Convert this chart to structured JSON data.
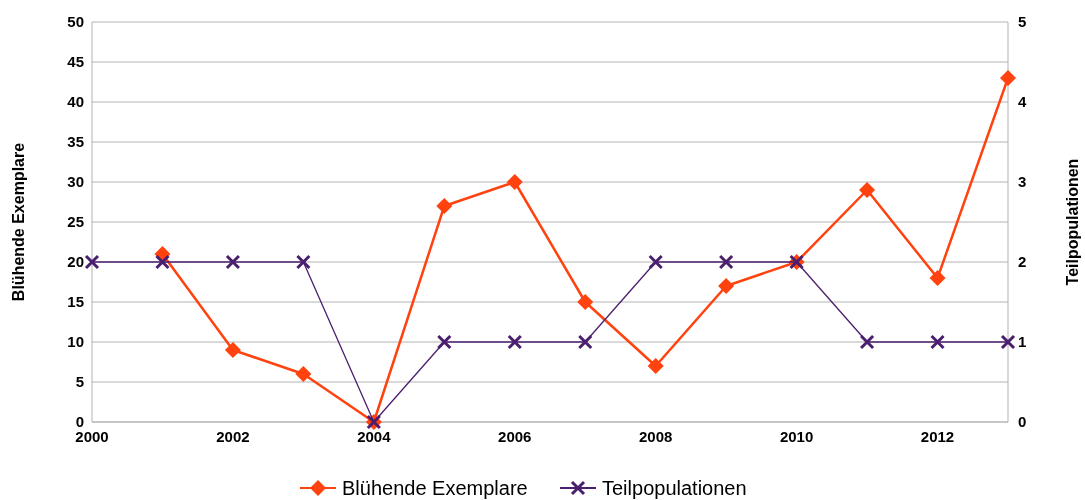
{
  "chart_data": {
    "type": "line",
    "x": [
      2000,
      2001,
      2002,
      2003,
      2004,
      2005,
      2006,
      2007,
      2008,
      2009,
      2010,
      2011,
      2012,
      2013
    ],
    "series": [
      {
        "name": "Blühende Exemplare",
        "color": "#ff420e",
        "marker": "diamond",
        "values": [
          null,
          21,
          9,
          6,
          0,
          27,
          30,
          15,
          7,
          17,
          20,
          29,
          18,
          43
        ]
      },
      {
        "name": "Teilpopulationen",
        "color": "#4b1f6f",
        "marker": "cross",
        "axis": "y2",
        "values": [
          2,
          2,
          2,
          2,
          0,
          1,
          1,
          1,
          2,
          2,
          2,
          1,
          1,
          1
        ]
      }
    ],
    "xlim": [
      2000,
      2013
    ],
    "xticks": [
      2000,
      2002,
      2004,
      2006,
      2008,
      2010,
      2012
    ],
    "ylim": [
      0,
      50
    ],
    "yticks": [
      0,
      5,
      10,
      15,
      20,
      25,
      30,
      35,
      40,
      45,
      50
    ],
    "y2lim": [
      0,
      5
    ],
    "y2ticks": [
      0,
      1,
      2,
      3,
      4,
      5
    ],
    "ylabel": "Blühende Exemplare",
    "y2label": "Teilpopulationen",
    "grid": "y",
    "legend": "bottom"
  }
}
